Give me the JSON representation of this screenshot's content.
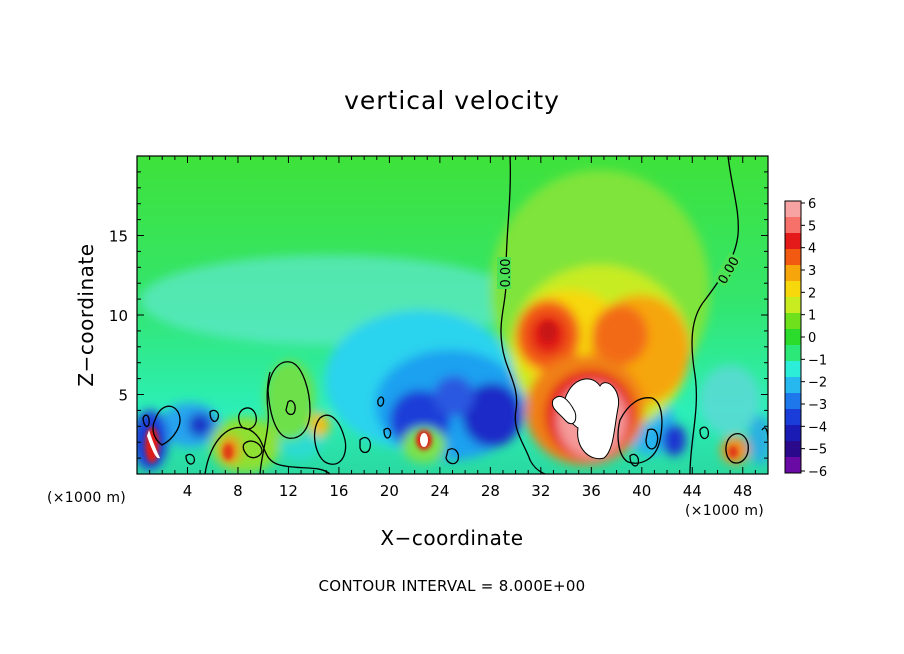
{
  "chart_data": {
    "type": "heatmap",
    "title": "vertical velocity",
    "xlabel": "X−coordinate",
    "ylabel": "Z−coordinate",
    "x_unit": "(×1000 m)",
    "footer": "CONTOUR INTERVAL = 8.000E+00",
    "xlim": [
      0,
      50
    ],
    "ylim": [
      0,
      20
    ],
    "x_ticks": [
      4,
      8,
      12,
      16,
      20,
      24,
      28,
      32,
      36,
      40,
      44,
      48
    ],
    "y_ticks": [
      5,
      10,
      15
    ],
    "colorbar": {
      "ticks": [
        "6",
        "5",
        "4",
        "3",
        "2",
        "1",
        "0",
        "−1",
        "−2",
        "−3",
        "−4",
        "−5",
        "−6"
      ],
      "range": [
        -6,
        6
      ]
    },
    "contour_labels": [
      "0.00",
      "0.00"
    ],
    "features": [
      {
        "kind": "updraft",
        "x": 32.5,
        "z": 9.0,
        "value": 4.5
      },
      {
        "kind": "updraft",
        "x": 36.0,
        "z": 3.5,
        "value": 6.5
      },
      {
        "kind": "updraft",
        "x": 39.5,
        "z": 9.0,
        "value": 3.5
      },
      {
        "kind": "updraft",
        "x": 7.5,
        "z": 1.5,
        "value": 4.0
      },
      {
        "kind": "updraft",
        "x": 22.5,
        "z": 2.0,
        "value": 6.0
      },
      {
        "kind": "updraft",
        "x": 1.0,
        "z": 2.0,
        "value": 6.0
      },
      {
        "kind": "updraft",
        "x": 47.5,
        "z": 1.5,
        "value": 3.5
      },
      {
        "kind": "updraft",
        "x": 14.5,
        "z": 3.0,
        "value": 3.0
      },
      {
        "kind": "downdraft",
        "x": 22.5,
        "z": 3.0,
        "value": -5.0
      },
      {
        "kind": "downdraft",
        "x": 27.0,
        "z": 3.5,
        "value": -4.5
      },
      {
        "kind": "downdraft",
        "x": 24.0,
        "z": 5.5,
        "value": -3.0
      },
      {
        "kind": "downdraft",
        "x": 1.5,
        "z": 2.5,
        "value": -4.0
      },
      {
        "kind": "downdraft",
        "x": 5.0,
        "z": 3.0,
        "value": -3.5
      },
      {
        "kind": "downdraft",
        "x": 42.5,
        "z": 2.5,
        "value": -3.5
      },
      {
        "kind": "downdraft",
        "x": 18.0,
        "z": 6.0,
        "value": -1.8
      }
    ]
  }
}
